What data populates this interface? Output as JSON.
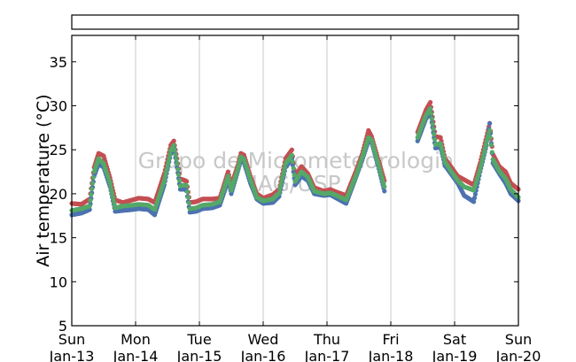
{
  "chart_data": {
    "type": "scatter",
    "title": "",
    "ylabel": "Air temperature (°C)",
    "xlabel": "",
    "ylim": [
      5,
      38
    ],
    "yticks": [
      5,
      10,
      15,
      20,
      25,
      30,
      35
    ],
    "xlim": [
      0,
      7
    ],
    "xticks": [
      {
        "x": 0,
        "day": "Sun",
        "date": "Jan-13"
      },
      {
        "x": 1,
        "day": "Mon",
        "date": "Jan-14"
      },
      {
        "x": 2,
        "day": "Tue",
        "date": "Jan-15"
      },
      {
        "x": 3,
        "day": "Wed",
        "date": "Jan-16"
      },
      {
        "x": 4,
        "day": "Thu",
        "date": "Jan-17"
      },
      {
        "x": 5,
        "day": "Fri",
        "date": "Jan-18"
      },
      {
        "x": 6,
        "day": "Sat",
        "date": "Jan-19"
      },
      {
        "x": 7,
        "day": "Sun",
        "date": "Jan-20"
      }
    ],
    "grid": "vertical",
    "legend_box": "empty",
    "watermark": [
      "Grupo de Micrometeorologia",
      "IAG/USP"
    ],
    "series": [
      {
        "color": "#c44e52",
        "points": [
          [
            0.0,
            18.9
          ],
          [
            0.15,
            18.8
          ],
          [
            0.28,
            19.4
          ],
          [
            0.35,
            23.0
          ],
          [
            0.42,
            24.6
          ],
          [
            0.5,
            24.3
          ],
          [
            0.6,
            21.8
          ],
          [
            0.68,
            19.3
          ],
          [
            0.8,
            19.0
          ],
          [
            0.95,
            19.3
          ],
          [
            1.05,
            19.5
          ],
          [
            1.2,
            19.4
          ],
          [
            1.3,
            19.0
          ],
          [
            1.45,
            22.3
          ],
          [
            1.55,
            25.5
          ],
          [
            1.6,
            26.0
          ],
          [
            1.65,
            24.0
          ],
          [
            1.7,
            21.7
          ],
          [
            1.78,
            21.5
          ],
          [
            1.8,
            21.4
          ],
          [
            1.85,
            19.0
          ],
          [
            1.95,
            19.1
          ],
          [
            2.05,
            19.4
          ],
          [
            2.2,
            19.4
          ],
          [
            2.32,
            19.5
          ],
          [
            2.45,
            22.5
          ],
          [
            2.5,
            21.0
          ],
          [
            2.6,
            23.2
          ],
          [
            2.65,
            24.6
          ],
          [
            2.7,
            24.4
          ],
          [
            2.8,
            22.0
          ],
          [
            2.9,
            20.0
          ],
          [
            3.0,
            19.5
          ],
          [
            3.15,
            19.9
          ],
          [
            3.25,
            20.5
          ],
          [
            3.35,
            24.0
          ],
          [
            3.45,
            25.0
          ],
          [
            3.5,
            22.0
          ],
          [
            3.6,
            23.1
          ],
          [
            3.7,
            22.3
          ],
          [
            3.8,
            20.7
          ],
          [
            3.95,
            20.3
          ],
          [
            4.05,
            20.5
          ],
          [
            4.15,
            20.2
          ],
          [
            4.3,
            19.8
          ],
          [
            4.45,
            22.5
          ],
          [
            4.55,
            24.5
          ],
          [
            4.65,
            27.2
          ],
          [
            4.7,
            26.5
          ],
          [
            4.8,
            24.0
          ],
          [
            4.9,
            21.5
          ],
          [
            5.42,
            27.0
          ],
          [
            5.55,
            29.5
          ],
          [
            5.62,
            30.4
          ],
          [
            5.7,
            26.5
          ],
          [
            5.78,
            26.4
          ],
          [
            5.85,
            24.0
          ],
          [
            5.95,
            23.0
          ],
          [
            6.05,
            22.0
          ],
          [
            6.15,
            21.6
          ],
          [
            6.3,
            21.0
          ],
          [
            6.4,
            23.5
          ],
          [
            6.5,
            26.5
          ],
          [
            6.55,
            28.0
          ],
          [
            6.6,
            24.5
          ],
          [
            6.7,
            23.1
          ],
          [
            6.8,
            22.5
          ],
          [
            6.88,
            21.2
          ],
          [
            7.0,
            20.5
          ]
        ]
      },
      {
        "color": "#4c72b0",
        "points": [
          [
            0.0,
            17.6
          ],
          [
            0.15,
            17.8
          ],
          [
            0.28,
            18.2
          ],
          [
            0.35,
            22.0
          ],
          [
            0.42,
            23.4
          ],
          [
            0.5,
            23.0
          ],
          [
            0.6,
            20.8
          ],
          [
            0.68,
            18.0
          ],
          [
            0.8,
            18.1
          ],
          [
            0.95,
            18.2
          ],
          [
            1.05,
            18.3
          ],
          [
            1.2,
            18.2
          ],
          [
            1.3,
            17.6
          ],
          [
            1.45,
            21.0
          ],
          [
            1.55,
            24.5
          ],
          [
            1.6,
            25.2
          ],
          [
            1.65,
            23.0
          ],
          [
            1.7,
            20.5
          ],
          [
            1.78,
            20.5
          ],
          [
            1.8,
            20.3
          ],
          [
            1.85,
            17.9
          ],
          [
            1.95,
            18.0
          ],
          [
            2.05,
            18.3
          ],
          [
            2.2,
            18.4
          ],
          [
            2.32,
            18.7
          ],
          [
            2.45,
            21.5
          ],
          [
            2.5,
            20.0
          ],
          [
            2.6,
            22.5
          ],
          [
            2.65,
            23.8
          ],
          [
            2.7,
            23.5
          ],
          [
            2.8,
            21.2
          ],
          [
            2.9,
            19.4
          ],
          [
            3.0,
            18.9
          ],
          [
            3.15,
            19.0
          ],
          [
            3.25,
            19.7
          ],
          [
            3.35,
            23.0
          ],
          [
            3.45,
            24.0
          ],
          [
            3.5,
            21.0
          ],
          [
            3.6,
            22.0
          ],
          [
            3.7,
            21.5
          ],
          [
            3.8,
            20.0
          ],
          [
            3.95,
            19.8
          ],
          [
            4.05,
            19.9
          ],
          [
            4.15,
            19.5
          ],
          [
            4.3,
            18.9
          ],
          [
            4.45,
            21.8
          ],
          [
            4.55,
            23.8
          ],
          [
            4.65,
            26.0
          ],
          [
            4.7,
            25.8
          ],
          [
            4.8,
            23.2
          ],
          [
            4.9,
            20.3
          ],
          [
            5.42,
            26.0
          ],
          [
            5.55,
            28.5
          ],
          [
            5.62,
            29.3
          ],
          [
            5.7,
            25.2
          ],
          [
            5.78,
            25.3
          ],
          [
            5.85,
            23.2
          ],
          [
            5.95,
            22.2
          ],
          [
            6.05,
            21.2
          ],
          [
            6.15,
            19.8
          ],
          [
            6.3,
            19.1
          ],
          [
            6.4,
            22.5
          ],
          [
            6.5,
            25.5
          ],
          [
            6.55,
            28.0
          ],
          [
            6.6,
            23.5
          ],
          [
            6.7,
            22.3
          ],
          [
            6.8,
            21.2
          ],
          [
            6.88,
            20.0
          ],
          [
            7.0,
            19.2
          ]
        ]
      },
      {
        "color": "#55a868",
        "points": [
          [
            0.0,
            18.1
          ],
          [
            0.15,
            18.3
          ],
          [
            0.28,
            18.6
          ],
          [
            0.35,
            22.5
          ],
          [
            0.42,
            24.0
          ],
          [
            0.5,
            23.4
          ],
          [
            0.6,
            21.2
          ],
          [
            0.68,
            18.4
          ],
          [
            0.8,
            18.6
          ],
          [
            0.95,
            18.7
          ],
          [
            1.05,
            18.8
          ],
          [
            1.2,
            18.7
          ],
          [
            1.3,
            18.2
          ],
          [
            1.45,
            21.5
          ],
          [
            1.55,
            24.9
          ],
          [
            1.6,
            25.5
          ],
          [
            1.65,
            23.4
          ],
          [
            1.7,
            20.9
          ],
          [
            1.78,
            21.0
          ],
          [
            1.8,
            20.9
          ],
          [
            1.85,
            18.3
          ],
          [
            1.95,
            18.4
          ],
          [
            2.05,
            18.7
          ],
          [
            2.2,
            18.8
          ],
          [
            2.32,
            19.1
          ],
          [
            2.45,
            22.0
          ],
          [
            2.5,
            20.4
          ],
          [
            2.6,
            22.8
          ],
          [
            2.65,
            24.2
          ],
          [
            2.7,
            23.9
          ],
          [
            2.8,
            21.6
          ],
          [
            2.9,
            19.6
          ],
          [
            3.0,
            19.2
          ],
          [
            3.15,
            19.4
          ],
          [
            3.25,
            20.1
          ],
          [
            3.35,
            23.4
          ],
          [
            3.45,
            24.4
          ],
          [
            3.5,
            21.4
          ],
          [
            3.6,
            22.5
          ],
          [
            3.7,
            21.9
          ],
          [
            3.8,
            20.3
          ],
          [
            3.95,
            20.0
          ],
          [
            4.05,
            20.1
          ],
          [
            4.15,
            19.8
          ],
          [
            4.3,
            19.3
          ],
          [
            4.45,
            22.0
          ],
          [
            4.55,
            24.1
          ],
          [
            4.65,
            26.4
          ],
          [
            4.7,
            26.1
          ],
          [
            4.8,
            23.5
          ],
          [
            4.9,
            20.8
          ],
          [
            5.42,
            26.4
          ],
          [
            5.55,
            28.9
          ],
          [
            5.62,
            29.7
          ],
          [
            5.7,
            25.6
          ],
          [
            5.78,
            25.7
          ],
          [
            5.85,
            23.6
          ],
          [
            5.95,
            22.5
          ],
          [
            6.05,
            21.5
          ],
          [
            6.15,
            20.8
          ],
          [
            6.3,
            20.4
          ],
          [
            6.4,
            22.8
          ],
          [
            6.5,
            25.9
          ],
          [
            6.55,
            27.2
          ],
          [
            6.6,
            23.9
          ],
          [
            6.7,
            22.6
          ],
          [
            6.8,
            21.7
          ],
          [
            6.88,
            20.5
          ],
          [
            7.0,
            19.6
          ]
        ]
      }
    ]
  }
}
